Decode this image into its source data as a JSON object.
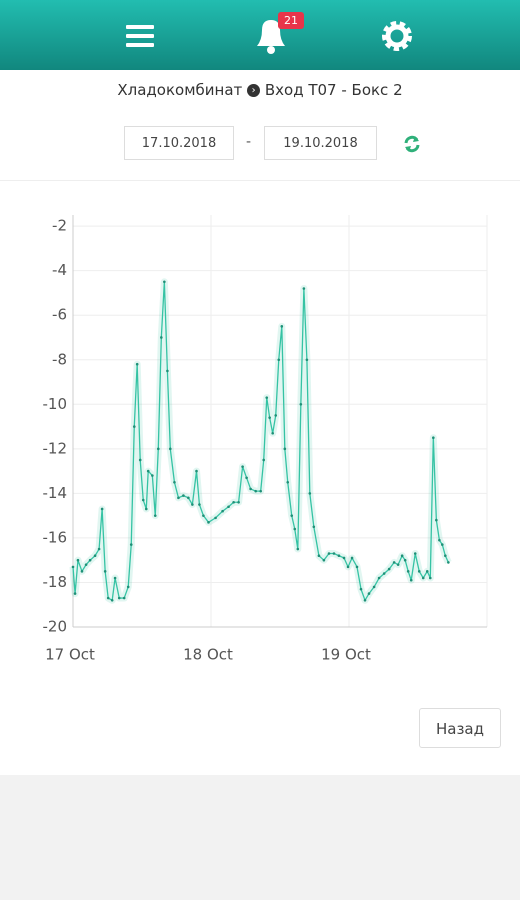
{
  "header": {
    "badge": "21"
  },
  "breadcrumb": {
    "from": "Хладокомбинат",
    "to": "Вход Т07 - Бокс 2"
  },
  "dates": {
    "from": "17.10.2018",
    "separator": "-",
    "to": "19.10.2018"
  },
  "button": "Назад",
  "chart_data": {
    "type": "line",
    "color": "#35c3a4",
    "grid": true,
    "xlim": [
      17,
      20
    ],
    "ylim": [
      -20,
      -1.5
    ],
    "xticks": [
      {
        "value": 17,
        "label": "17 Oct"
      },
      {
        "value": 18,
        "label": "18 Oct"
      },
      {
        "value": 19,
        "label": "19 Oct"
      }
    ],
    "yticks": [
      -20,
      -18,
      -16,
      -14,
      -12,
      -10,
      -8,
      -6,
      -4,
      -2
    ],
    "x": [
      17.0,
      17.015,
      17.036,
      17.065,
      17.095,
      17.124,
      17.16,
      17.189,
      17.211,
      17.233,
      17.255,
      17.284,
      17.305,
      17.335,
      17.371,
      17.4,
      17.422,
      17.444,
      17.465,
      17.487,
      17.509,
      17.531,
      17.545,
      17.575,
      17.596,
      17.618,
      17.64,
      17.662,
      17.684,
      17.705,
      17.735,
      17.764,
      17.8,
      17.836,
      17.865,
      17.895,
      17.916,
      17.945,
      17.982,
      18.033,
      18.084,
      18.127,
      18.164,
      18.2,
      18.229,
      18.258,
      18.287,
      18.324,
      18.36,
      18.382,
      18.404,
      18.425,
      18.447,
      18.469,
      18.491,
      18.513,
      18.535,
      18.556,
      18.585,
      18.607,
      18.629,
      18.651,
      18.673,
      18.695,
      18.716,
      18.745,
      18.782,
      18.818,
      18.855,
      18.891,
      18.927,
      18.964,
      18.993,
      19.022,
      19.058,
      19.087,
      19.116,
      19.145,
      19.182,
      19.218,
      19.255,
      19.291,
      19.327,
      19.356,
      19.385,
      19.407,
      19.429,
      19.451,
      19.48,
      19.509,
      19.538,
      19.567,
      19.589,
      19.611,
      19.633,
      19.655,
      19.676,
      19.698,
      19.72
    ],
    "values": [
      -17.3,
      -18.5,
      -17,
      -17.5,
      -17.2,
      -17,
      -16.8,
      -16.5,
      -14.7,
      -17.5,
      -18.7,
      -18.8,
      -17.8,
      -18.7,
      -18.7,
      -18.2,
      -16.3,
      -11,
      -8.2,
      -12.5,
      -14.3,
      -14.7,
      -13,
      -13.2,
      -15,
      -12,
      -7,
      -4.5,
      -8.5,
      -12,
      -13.5,
      -14.2,
      -14.1,
      -14.2,
      -14.5,
      -13,
      -14.5,
      -15,
      -15.3,
      -15.1,
      -14.8,
      -14.6,
      -14.4,
      -14.4,
      -12.8,
      -13.3,
      -13.8,
      -13.9,
      -13.9,
      -12.5,
      -9.7,
      -10.6,
      -11.3,
      -10.5,
      -8,
      -6.5,
      -12,
      -13.5,
      -15,
      -15.6,
      -16.5,
      -10,
      -4.8,
      -8,
      -14,
      -15.5,
      -16.8,
      -17,
      -16.7,
      -16.7,
      -16.8,
      -16.9,
      -17.3,
      -16.9,
      -17.3,
      -18.3,
      -18.8,
      -18.5,
      -18.2,
      -17.8,
      -17.6,
      -17.4,
      -17.1,
      -17.2,
      -16.8,
      -17,
      -17.5,
      -17.9,
      -16.7,
      -17.5,
      -17.8,
      -17.5,
      -17.8,
      -11.5,
      -15.2,
      -16.1,
      -16.3,
      -16.8,
      -17.1
    ]
  }
}
